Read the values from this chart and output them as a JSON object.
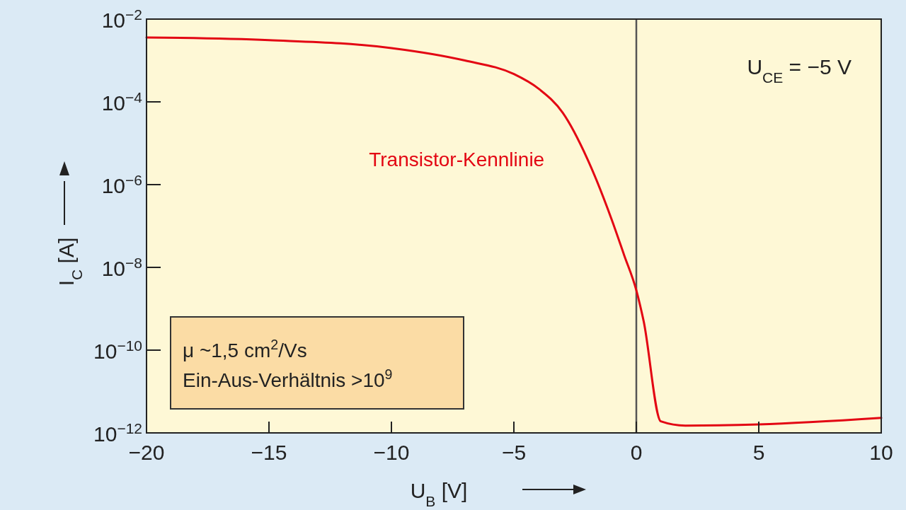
{
  "chart_data": {
    "type": "line",
    "xlabel": "U$_{B}$ [V]",
    "ylabel": "I$_{C}$ [A]",
    "log": "y",
    "xlim": [
      -20,
      10
    ],
    "xticks": [
      {
        "value": -20,
        "label": "−20"
      },
      {
        "value": -15,
        "label": "−15"
      },
      {
        "value": -10,
        "label": "−10"
      },
      {
        "value": -5,
        "label": "−5"
      },
      0,
      5,
      10
    ],
    "ylim": [
      1e-12,
      0.01
    ],
    "yticks": [
      {
        "value": 1e-12,
        "label": "10$^{−12}$"
      },
      {
        "value": 1e-10,
        "label": "10$^{−10}$"
      },
      {
        "value": 1e-08,
        "label": "10$^{−8}$"
      },
      {
        "value": 1e-06,
        "label": "10$^{−6}$"
      },
      {
        "value": 0.0001,
        "label": "10$^{−4}$"
      },
      {
        "value": 0.01,
        "label": "10$^{−2}$"
      }
    ],
    "grid": false,
    "marker": "none",
    "line_style": "solid",
    "x": [
      -20,
      -15,
      -10,
      -7,
      -5,
      -4,
      -3,
      -2,
      -1,
      -0.5,
      0,
      0.3,
      1,
      2,
      5,
      10
    ],
    "series": [
      {
        "name": "Transistor-Kennlinie",
        "color": "#e30613",
        "values": [
          0.0036,
          0.0031,
          0.002,
          0.001,
          0.00047,
          0.00021,
          5.4e-05,
          4.2e-06,
          1.4e-07,
          2e-08,
          2.8e-09,
          5e-10,
          1.9e-12,
          1.5e-12,
          1.6e-12,
          2.3e-12
        ]
      }
    ],
    "ref_lines": [
      {
        "axis": "x",
        "value": 0,
        "color": "#555555"
      }
    ],
    "annotations": [
      "U$_{CE}$ = −5 V",
      "μ ~1,5 cm$^{2}$/Vs",
      "Ein-Aus-Verhältnis >10$^{9}$"
    ]
  }
}
